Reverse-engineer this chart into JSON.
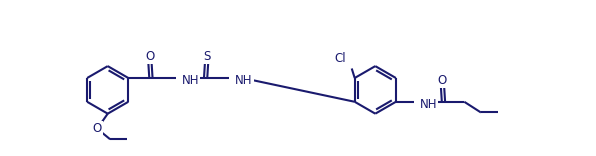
{
  "bg_color": "#ffffff",
  "line_color": "#1a1a6e",
  "line_width": 1.5,
  "font_size": 8.5,
  "fig_width": 5.96,
  "fig_height": 1.56,
  "dpi": 100,
  "xlim": [
    0.0,
    10.0
  ],
  "ylim": [
    0.3,
    2.9
  ]
}
